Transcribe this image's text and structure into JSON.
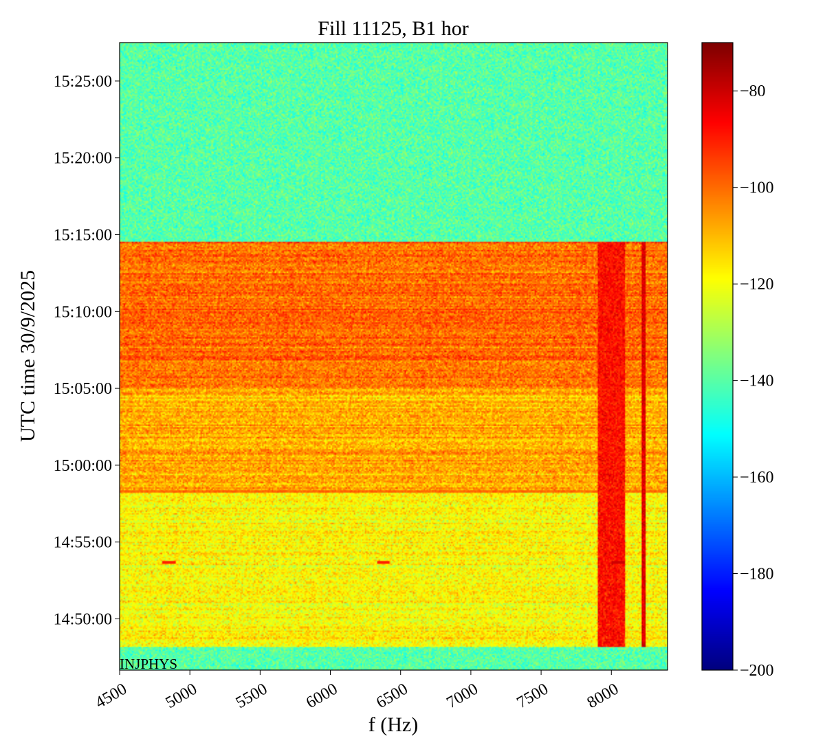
{
  "chart_data": {
    "type": "heatmap",
    "title": "Fill 11125, B1 hor",
    "xlabel": "f (Hz)",
    "ylabel": "UTC time 30/9/2025",
    "xlim": [
      4500,
      8400
    ],
    "xticks": [
      4500,
      5000,
      5500,
      6000,
      6500,
      7000,
      7500,
      8000
    ],
    "yticks": [
      "15:25:00",
      "15:20:00",
      "15:15:00",
      "15:10:00",
      "15:05:00",
      "15:00:00",
      "14:55:00",
      "14:50:00"
    ],
    "ylim": [
      "14:46:40",
      "15:27:30"
    ],
    "colorbar": {
      "range": [
        -200,
        -70
      ],
      "ticks": [
        -80,
        -100,
        -120,
        -140,
        -160,
        -180,
        -200
      ],
      "colormap": "jet"
    },
    "annotation": "INJPHYS",
    "regions": [
      {
        "from": "14:46:40",
        "to": "14:48:10",
        "level_dB": -140
      },
      {
        "from": "14:48:10",
        "to": "14:58:20",
        "level_dB": -118
      },
      {
        "from": "14:58:20",
        "to": "15:05:00",
        "level_dB": -108
      },
      {
        "from": "15:05:00",
        "to": "15:14:30",
        "level_dB": -100
      },
      {
        "from": "15:14:30",
        "to": "15:27:30",
        "level_dB": -140
      }
    ],
    "features": [
      {
        "kind": "vertical-line",
        "f_Hz": 8230,
        "from": "14:48:10",
        "to": "15:14:30",
        "level_dB": -82
      },
      {
        "kind": "vertical-band",
        "f_Hz": 8000,
        "width_Hz": 200,
        "from": "14:48:10",
        "to": "15:14:30",
        "level_dB": -88
      },
      {
        "kind": "horizontal-line",
        "time": "14:58:20",
        "level_dB": -100
      },
      {
        "kind": "hot-spot",
        "f_Hz": 4850,
        "time": "14:53:40",
        "level_dB": -90
      },
      {
        "kind": "hot-spot",
        "f_Hz": 6380,
        "time": "14:53:40",
        "level_dB": -90
      },
      {
        "kind": "hot-spot",
        "f_Hz": 8050,
        "time": "14:53:40",
        "level_dB": -80
      }
    ]
  }
}
